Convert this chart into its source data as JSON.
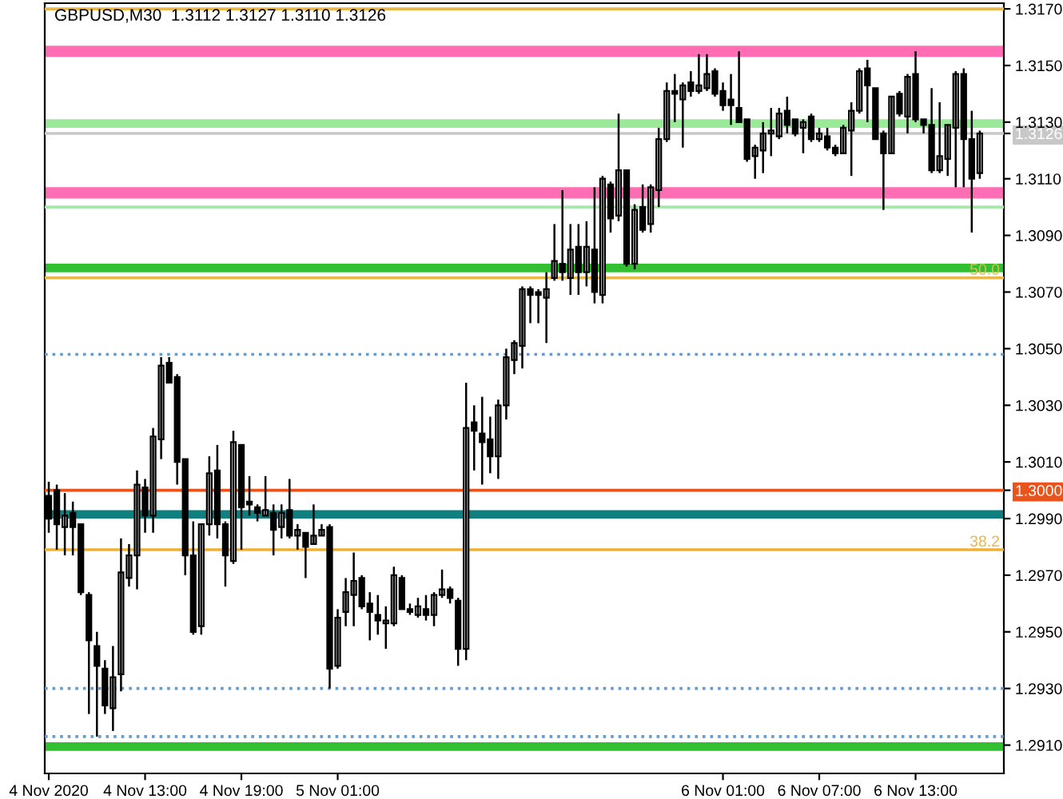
{
  "chart_data": {
    "type": "candlestick",
    "title": "GBPUSD,M30  1.3112 1.3127 1.3110 1.3126",
    "x": [
      "2020-11-04T07:00",
      "2020-11-04T07:30",
      "2020-11-04T08:00",
      "2020-11-04T08:30",
      "2020-11-04T09:00",
      "2020-11-04T09:30",
      "2020-11-04T10:00",
      "2020-11-04T10:30",
      "2020-11-04T11:00",
      "2020-11-04T11:30",
      "2020-11-04T12:00",
      "2020-11-04T12:30",
      "2020-11-04T13:00",
      "2020-11-04T13:30",
      "2020-11-04T14:00",
      "2020-11-04T14:30",
      "2020-11-04T15:00",
      "2020-11-04T15:30",
      "2020-11-04T16:00",
      "2020-11-04T16:30",
      "2020-11-04T17:00",
      "2020-11-04T17:30",
      "2020-11-04T18:00",
      "2020-11-04T18:30",
      "2020-11-04T19:00",
      "2020-11-04T19:30",
      "2020-11-04T20:00",
      "2020-11-04T20:30",
      "2020-11-04T21:00",
      "2020-11-04T21:30",
      "2020-11-04T22:00",
      "2020-11-04T22:30",
      "2020-11-04T23:00",
      "2020-11-04T23:30",
      "2020-11-05T00:00",
      "2020-11-05T00:30",
      "2020-11-05T01:00",
      "2020-11-05T01:30",
      "2020-11-05T02:00",
      "2020-11-05T02:30",
      "2020-11-05T03:00",
      "2020-11-05T03:30",
      "2020-11-05T04:00",
      "2020-11-05T04:30",
      "2020-11-05T05:00",
      "2020-11-05T05:30",
      "2020-11-05T06:00",
      "2020-11-05T06:30",
      "2020-11-05T07:00",
      "2020-11-05T07:30",
      "2020-11-05T08:00",
      "2020-11-05T08:30",
      "2020-11-05T09:00",
      "2020-11-05T09:30",
      "2020-11-05T10:00",
      "2020-11-05T10:30",
      "2020-11-05T11:00",
      "2020-11-05T11:30",
      "2020-11-05T12:00",
      "2020-11-05T12:30",
      "2020-11-05T13:00",
      "2020-11-05T13:30",
      "2020-11-05T14:00",
      "2020-11-05T14:30",
      "2020-11-05T15:00",
      "2020-11-05T15:30",
      "2020-11-05T16:00",
      "2020-11-05T16:30",
      "2020-11-05T17:00",
      "2020-11-05T17:30",
      "2020-11-05T18:00",
      "2020-11-05T18:30",
      "2020-11-05T19:00",
      "2020-11-05T19:30",
      "2020-11-05T20:00",
      "2020-11-05T20:30",
      "2020-11-05T21:00",
      "2020-11-05T21:30",
      "2020-11-05T22:00",
      "2020-11-05T22:30",
      "2020-11-05T23:00",
      "2020-11-05T23:30",
      "2020-11-06T00:00",
      "2020-11-06T00:30",
      "2020-11-06T01:00",
      "2020-11-06T01:30",
      "2020-11-06T02:00",
      "2020-11-06T02:30",
      "2020-11-06T03:00",
      "2020-11-06T03:30",
      "2020-11-06T04:00",
      "2020-11-06T04:30",
      "2020-11-06T05:00",
      "2020-11-06T05:30",
      "2020-11-06T06:00",
      "2020-11-06T06:30",
      "2020-11-06T07:00",
      "2020-11-06T07:30",
      "2020-11-06T08:00",
      "2020-11-06T08:30",
      "2020-11-06T09:00",
      "2020-11-06T09:30",
      "2020-11-06T10:00",
      "2020-11-06T10:30",
      "2020-11-06T11:00",
      "2020-11-06T11:30",
      "2020-11-06T12:00",
      "2020-11-06T12:30",
      "2020-11-06T13:00",
      "2020-11-06T13:30",
      "2020-11-06T14:00",
      "2020-11-06T14:30",
      "2020-11-06T15:00",
      "2020-11-06T15:30",
      "2020-11-06T16:00",
      "2020-11-06T16:30",
      "2020-11-06T17:00"
    ],
    "ohlc": [
      [
        1.2998,
        1.3003,
        1.2985,
        1.299
      ],
      [
        1.3,
        1.3002,
        1.2979,
        1.2988
      ],
      [
        1.2987,
        1.2999,
        1.2977,
        1.2991
      ],
      [
        1.2992,
        1.2996,
        1.2977,
        1.2987
      ],
      [
        1.2988,
        1.2988,
        1.2963,
        1.2964
      ],
      [
        1.2963,
        1.2964,
        1.2921,
        1.2947
      ],
      [
        1.2945,
        1.295,
        1.2913,
        1.2938
      ],
      [
        1.2937,
        1.294,
        1.2921,
        1.2924
      ],
      [
        1.2923,
        1.2945,
        1.2915,
        1.2934
      ],
      [
        1.2935,
        1.2983,
        1.2929,
        1.2971
      ],
      [
        1.2969,
        1.2981,
        1.2966,
        1.2977
      ],
      [
        1.2977,
        1.3007,
        1.2965,
        1.3002
      ],
      [
        1.3001,
        1.3004,
        1.2985,
        1.2991
      ],
      [
        1.2991,
        1.3022,
        1.2985,
        1.3019
      ],
      [
        1.3018,
        1.3047,
        1.3011,
        1.3044
      ],
      [
        1.3045,
        1.3047,
        1.3038,
        1.3038
      ],
      [
        1.304,
        1.3041,
        1.3002,
        1.301
      ],
      [
        1.3011,
        1.3011,
        1.297,
        1.2977
      ],
      [
        1.2977,
        1.2989,
        1.2949,
        1.295
      ],
      [
        1.2952,
        1.2988,
        1.2949,
        1.2988
      ],
      [
        1.2988,
        1.3012,
        1.2984,
        1.3006
      ],
      [
        1.3007,
        1.3016,
        1.2983,
        1.2988
      ],
      [
        1.2988,
        1.2989,
        1.2966,
        1.2977
      ],
      [
        1.2975,
        1.3021,
        1.2974,
        1.3017
      ],
      [
        1.3016,
        1.3016,
        1.2979,
        1.2994
      ],
      [
        1.2996,
        1.3005,
        1.2991,
        1.2995
      ],
      [
        1.2994,
        1.2995,
        1.2989,
        1.2992
      ],
      [
        1.2991,
        1.3005,
        1.2991,
        1.2993
      ],
      [
        1.2992,
        1.2995,
        1.2977,
        1.2986
      ],
      [
        1.2987,
        1.2995,
        1.2983,
        1.2992
      ],
      [
        1.2993,
        1.3004,
        1.2983,
        1.2984
      ],
      [
        1.2984,
        1.2988,
        1.2979,
        1.2986
      ],
      [
        1.2985,
        1.2985,
        1.2969,
        1.298
      ],
      [
        1.2981,
        1.2995,
        1.2981,
        1.2984
      ],
      [
        1.2984,
        1.2988,
        1.2984,
        1.2986
      ],
      [
        1.2987,
        1.2988,
        1.293,
        1.2937
      ],
      [
        1.2938,
        1.2958,
        1.2937,
        1.2955
      ],
      [
        1.2957,
        1.2969,
        1.2952,
        1.2964
      ],
      [
        1.2963,
        1.2978,
        1.2952,
        1.2968
      ],
      [
        1.2969,
        1.297,
        1.2958,
        1.2959
      ],
      [
        1.296,
        1.2964,
        1.2947,
        1.2957
      ],
      [
        1.2956,
        1.2963,
        1.2949,
        1.2954
      ],
      [
        1.2953,
        1.2959,
        1.2944,
        1.2954
      ],
      [
        1.2953,
        1.2973,
        1.2952,
        1.297
      ],
      [
        1.2969,
        1.297,
        1.2958,
        1.2958
      ],
      [
        1.2958,
        1.296,
        1.2956,
        1.2957
      ],
      [
        1.2956,
        1.2962,
        1.2955,
        1.2959
      ],
      [
        1.2958,
        1.2963,
        1.2954,
        1.2956
      ],
      [
        1.2956,
        1.2964,
        1.2952,
        1.2963
      ],
      [
        1.2963,
        1.2972,
        1.2962,
        1.2965
      ],
      [
        1.2965,
        1.2966,
        1.296,
        1.2962
      ],
      [
        1.2961,
        1.2962,
        1.2938,
        1.2944
      ],
      [
        1.2944,
        1.3038,
        1.294,
        1.3022
      ],
      [
        1.3024,
        1.303,
        1.3007,
        1.3021
      ],
      [
        1.302,
        1.3033,
        1.3002,
        1.3017
      ],
      [
        1.3018,
        1.3026,
        1.3006,
        1.3012
      ],
      [
        1.3012,
        1.3032,
        1.3004,
        1.303
      ],
      [
        1.303,
        1.305,
        1.3025,
        1.3047
      ],
      [
        1.3046,
        1.3053,
        1.3041,
        1.3052
      ],
      [
        1.3051,
        1.3072,
        1.3043,
        1.3071
      ],
      [
        1.3071,
        1.3072,
        1.3059,
        1.3069
      ],
      [
        1.307,
        1.3071,
        1.3059,
        1.3069
      ],
      [
        1.3068,
        1.3077,
        1.3052,
        1.3071
      ],
      [
        1.3075,
        1.3094,
        1.3074,
        1.3081
      ],
      [
        1.308,
        1.3106,
        1.3074,
        1.3077
      ],
      [
        1.3075,
        1.3094,
        1.3069,
        1.3085
      ],
      [
        1.3086,
        1.3094,
        1.3069,
        1.3077
      ],
      [
        1.3077,
        1.3095,
        1.3072,
        1.3086
      ],
      [
        1.3085,
        1.3107,
        1.3066,
        1.307
      ],
      [
        1.3069,
        1.3111,
        1.3066,
        1.311
      ],
      [
        1.3108,
        1.3109,
        1.3091,
        1.3096
      ],
      [
        1.3097,
        1.3133,
        1.3095,
        1.3113
      ],
      [
        1.3113,
        1.3113,
        1.3079,
        1.308
      ],
      [
        1.308,
        1.3101,
        1.3078,
        1.3099
      ],
      [
        1.31,
        1.3108,
        1.3091,
        1.3092
      ],
      [
        1.3094,
        1.3108,
        1.3091,
        1.3107
      ],
      [
        1.3106,
        1.3128,
        1.31,
        1.3124
      ],
      [
        1.3124,
        1.3144,
        1.3123,
        1.3141
      ],
      [
        1.3141,
        1.3147,
        1.313,
        1.314
      ],
      [
        1.3138,
        1.3144,
        1.3121,
        1.3143
      ],
      [
        1.3144,
        1.3148,
        1.3139,
        1.3141
      ],
      [
        1.3141,
        1.3154,
        1.314,
        1.3143
      ],
      [
        1.3142,
        1.3154,
        1.3141,
        1.3147
      ],
      [
        1.3148,
        1.3149,
        1.3139,
        1.314
      ],
      [
        1.3141,
        1.3144,
        1.3134,
        1.3136
      ],
      [
        1.3138,
        1.3147,
        1.3129,
        1.3136
      ],
      [
        1.3135,
        1.3155,
        1.313,
        1.313
      ],
      [
        1.3131,
        1.3131,
        1.3116,
        1.3117
      ],
      [
        1.3118,
        1.3122,
        1.311,
        1.3121
      ],
      [
        1.312,
        1.313,
        1.3112,
        1.3126
      ],
      [
        1.3126,
        1.3135,
        1.3118,
        1.3127
      ],
      [
        1.3125,
        1.3135,
        1.3124,
        1.3133
      ],
      [
        1.3134,
        1.3139,
        1.3126,
        1.3129
      ],
      [
        1.3131,
        1.3131,
        1.3125,
        1.3126
      ],
      [
        1.3128,
        1.3131,
        1.3119,
        1.313
      ],
      [
        1.3132,
        1.3133,
        1.3123,
        1.3124
      ],
      [
        1.3124,
        1.3128,
        1.3123,
        1.3126
      ],
      [
        1.3125,
        1.3128,
        1.312,
        1.3121
      ],
      [
        1.3121,
        1.3122,
        1.3118,
        1.3119
      ],
      [
        1.3119,
        1.3129,
        1.3119,
        1.3128
      ],
      [
        1.3127,
        1.3137,
        1.3111,
        1.3134
      ],
      [
        1.3134,
        1.3149,
        1.3133,
        1.3148
      ],
      [
        1.3149,
        1.3152,
        1.313,
        1.3143
      ],
      [
        1.3142,
        1.3142,
        1.3124,
        1.3124
      ],
      [
        1.3126,
        1.3127,
        1.3099,
        1.3119
      ],
      [
        1.3119,
        1.3139,
        1.3119,
        1.3139
      ],
      [
        1.314,
        1.3141,
        1.3132,
        1.3133
      ],
      [
        1.3132,
        1.3147,
        1.3126,
        1.3146
      ],
      [
        1.3147,
        1.3155,
        1.313,
        1.3131
      ],
      [
        1.3131,
        1.3131,
        1.3126,
        1.3129
      ],
      [
        1.3129,
        1.3142,
        1.3112,
        1.3113
      ],
      [
        1.3113,
        1.3137,
        1.3112,
        1.3118
      ],
      [
        1.3117,
        1.3129,
        1.3111,
        1.3129
      ],
      [
        1.3128,
        1.3148,
        1.3107,
        1.3147
      ],
      [
        1.3147,
        1.3149,
        1.3107,
        1.3124
      ],
      [
        1.3124,
        1.3134,
        1.3091,
        1.311
      ],
      [
        1.3112,
        1.3127,
        1.311,
        1.3126
      ]
    ],
    "xlim": [
      "2020-11-04T06:45",
      "2020-11-06T18:30"
    ],
    "xticks": [
      {
        "value": "2020-11-04T07:00",
        "label": "4 Nov 2020"
      },
      {
        "value": "2020-11-04T13:00",
        "label": "4 Nov 13:00"
      },
      {
        "value": "2020-11-04T19:00",
        "label": "4 Nov 19:00"
      },
      {
        "value": "2020-11-05T01:00",
        "label": "5 Nov 01:00"
      },
      {
        "value": "2020-11-06T01:00",
        "label": "6 Nov 01:00"
      },
      {
        "value": "2020-11-06T07:00",
        "label": "6 Nov 07:00"
      },
      {
        "value": "2020-11-06T13:00",
        "label": "6 Nov 13:00"
      }
    ],
    "ylim": [
      1.29,
      1.3172
    ],
    "yticks": [
      {
        "value": 1.291,
        "label": "1.2910"
      },
      {
        "value": 1.293,
        "label": "1.2930"
      },
      {
        "value": 1.295,
        "label": "1.2950"
      },
      {
        "value": 1.297,
        "label": "1.2970"
      },
      {
        "value": 1.299,
        "label": "1.2990"
      },
      {
        "value": 1.3,
        "label": "1.3000"
      },
      {
        "value": 1.301,
        "label": "1.3010"
      },
      {
        "value": 1.303,
        "label": "1.3030"
      },
      {
        "value": 1.305,
        "label": "1.3050"
      },
      {
        "value": 1.307,
        "label": "1.3070"
      },
      {
        "value": 1.309,
        "label": "1.3090"
      },
      {
        "value": 1.311,
        "label": "1.3110"
      },
      {
        "value": 1.3126,
        "label": "1.3126"
      },
      {
        "value": 1.313,
        "label": "1.3130"
      },
      {
        "value": 1.315,
        "label": "1.3150"
      },
      {
        "value": 1.317,
        "label": "1.3170"
      }
    ],
    "ref_lines": [
      {
        "axis": "y",
        "value": 1.317,
        "color": "#e8b84a"
      },
      {
        "axis": "y",
        "value": 1.3126,
        "color": "#c8c8c8"
      },
      {
        "axis": "y",
        "value": 1.31,
        "color": "#a8e8a8"
      },
      {
        "axis": "y",
        "value": 1.3075,
        "color": "#e8b84a"
      },
      {
        "axis": "y",
        "value": 1.3048,
        "color": "#6a9ac8",
        "line_style": "dotted"
      },
      {
        "axis": "y",
        "value": 1.3,
        "color": "#e8541c"
      },
      {
        "axis": "y",
        "value": 1.2979,
        "color": "#f0b030"
      },
      {
        "axis": "y",
        "value": 1.293,
        "color": "#6a9ac8",
        "line_style": "dotted"
      },
      {
        "axis": "y",
        "value": 1.2913,
        "color": "#6a9ac8",
        "line_style": "dotted"
      }
    ],
    "bands": [
      {
        "axis": "y",
        "from": 1.3153,
        "to": 1.3157,
        "color": "#ff6eb4"
      },
      {
        "axis": "y",
        "from": 1.3103,
        "to": 1.3107,
        "color": "#ff6eb4"
      },
      {
        "axis": "y",
        "from": 1.3128,
        "to": 1.3131,
        "color": "#9aea9a"
      },
      {
        "axis": "y",
        "from": 1.3077,
        "to": 1.308,
        "color": "#32c032"
      },
      {
        "axis": "y",
        "from": 1.299,
        "to": 1.2993,
        "color": "#0f7f7f"
      },
      {
        "axis": "y",
        "from": 1.2908,
        "to": 1.2911,
        "color": "#32c032"
      }
    ],
    "annotations": [
      {
        "text": "50.0",
        "x": "2020-11-06T18:15",
        "y": 1.3075
      },
      {
        "text": "38.2",
        "x": "2020-11-06T18:15",
        "y": 1.2979
      }
    ],
    "grid": false
  }
}
